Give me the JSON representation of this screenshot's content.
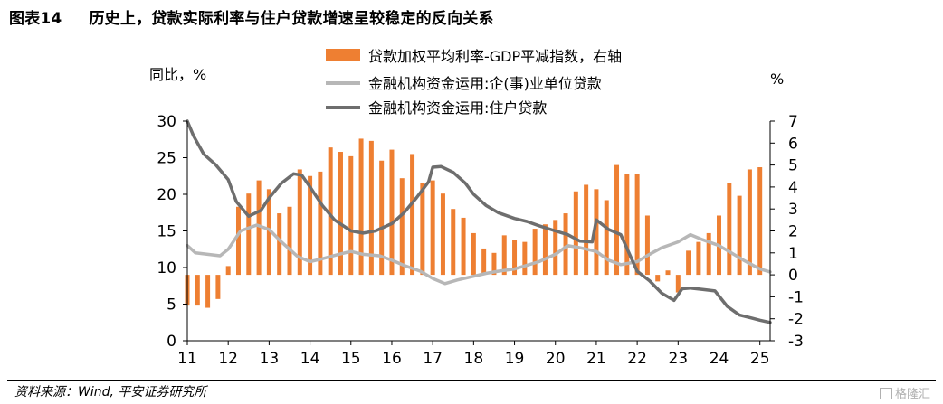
{
  "figure": {
    "tag": "图表14",
    "title": "历史上，贷款实际利率与住户贷款增速呈较稳定的反向关系",
    "source": "资料来源：Wind, 平安证券研究所",
    "watermark": "格隆汇"
  },
  "chart_data": {
    "type": "bar+line",
    "y_left_label": "同比，%",
    "y_right_label": "%",
    "y_left_range": [
      0,
      30
    ],
    "y_left_ticks": [
      "0",
      "5",
      "10",
      "15",
      "20",
      "25",
      "30"
    ],
    "y_right_range": [
      -3,
      7
    ],
    "y_right_ticks": [
      "-3",
      "-2",
      "-1",
      "0",
      "1",
      "2",
      "3",
      "4",
      "5",
      "6",
      "7"
    ],
    "x_range": [
      2011.0,
      2025.25
    ],
    "x_ticks": [
      "11",
      "12",
      "13",
      "14",
      "15",
      "16",
      "17",
      "18",
      "19",
      "20",
      "21",
      "22",
      "23",
      "24",
      "25"
    ],
    "legend_position": "top",
    "grid": false,
    "colors": {
      "bar": "#ee7f32",
      "line_enterprise": "#b7b7b7",
      "line_household": "#6e6e6e"
    },
    "legend": [
      {
        "key": "bar",
        "label": "贷款加权平均利率-GDP平减指数，右轴"
      },
      {
        "key": "enterprise",
        "label": "金融机构资金运用:企(事)业单位贷款"
      },
      {
        "key": "household",
        "label": "金融机构资金运用:住户贷款"
      }
    ],
    "bars_axis": "right",
    "bars": [
      {
        "x": "2011Q1",
        "value": -1.4
      },
      {
        "x": "2011Q2",
        "value": -1.4
      },
      {
        "x": "2011Q3",
        "value": -1.5
      },
      {
        "x": "2011Q4",
        "value": -1.1
      },
      {
        "x": "2012Q1",
        "value": 0.4
      },
      {
        "x": "2012Q2",
        "value": 3.1
      },
      {
        "x": "2012Q3",
        "value": 3.7
      },
      {
        "x": "2012Q4",
        "value": 4.3
      },
      {
        "x": "2013Q1",
        "value": 3.9
      },
      {
        "x": "2013Q2",
        "value": 2.8
      },
      {
        "x": "2013Q3",
        "value": 3.1
      },
      {
        "x": "2013Q4",
        "value": 4.8
      },
      {
        "x": "2014Q1",
        "value": 4.5
      },
      {
        "x": "2014Q2",
        "value": 4.7
      },
      {
        "x": "2014Q3",
        "value": 5.8
      },
      {
        "x": "2014Q4",
        "value": 5.6
      },
      {
        "x": "2015Q1",
        "value": 5.4
      },
      {
        "x": "2015Q2",
        "value": 6.2
      },
      {
        "x": "2015Q3",
        "value": 6.1
      },
      {
        "x": "2015Q4",
        "value": 5.2
      },
      {
        "x": "2016Q1",
        "value": 5.7
      },
      {
        "x": "2016Q2",
        "value": 4.4
      },
      {
        "x": "2016Q3",
        "value": 5.5
      },
      {
        "x": "2016Q4",
        "value": 4.2
      },
      {
        "x": "2017Q1",
        "value": 4.3
      },
      {
        "x": "2017Q2",
        "value": 3.7
      },
      {
        "x": "2017Q3",
        "value": 3.0
      },
      {
        "x": "2017Q4",
        "value": 2.6
      },
      {
        "x": "2018Q1",
        "value": 1.9
      },
      {
        "x": "2018Q2",
        "value": 1.2
      },
      {
        "x": "2018Q3",
        "value": 1.0
      },
      {
        "x": "2018Q4",
        "value": 1.8
      },
      {
        "x": "2019Q1",
        "value": 1.6
      },
      {
        "x": "2019Q2",
        "value": 1.5
      },
      {
        "x": "2019Q3",
        "value": 2.1
      },
      {
        "x": "2019Q4",
        "value": 2.3
      },
      {
        "x": "2020Q1",
        "value": 2.5
      },
      {
        "x": "2020Q2",
        "value": 2.8
      },
      {
        "x": "2020Q3",
        "value": 3.8
      },
      {
        "x": "2020Q4",
        "value": 4.1
      },
      {
        "x": "2021Q1",
        "value": 3.9
      },
      {
        "x": "2021Q2",
        "value": 3.4
      },
      {
        "x": "2021Q3",
        "value": 5.0
      },
      {
        "x": "2021Q4",
        "value": 4.6
      },
      {
        "x": "2022Q1",
        "value": 4.6
      },
      {
        "x": "2022Q2",
        "value": 2.7
      },
      {
        "x": "2022Q3",
        "value": -0.3
      },
      {
        "x": "2022Q4",
        "value": 0.2
      },
      {
        "x": "2023Q1",
        "value": -0.8
      },
      {
        "x": "2023Q2",
        "value": 1.1
      },
      {
        "x": "2023Q3",
        "value": 1.5
      },
      {
        "x": "2023Q4",
        "value": 1.9
      },
      {
        "x": "2024Q1",
        "value": 2.7
      },
      {
        "x": "2024Q2",
        "value": 4.2
      },
      {
        "x": "2024Q3",
        "value": 3.6
      },
      {
        "x": "2024Q4",
        "value": 4.8
      },
      {
        "x": "2025Q1",
        "value": 4.9
      }
    ],
    "series": [
      {
        "name": "金融机构资金运用:企(事)业单位贷款",
        "axis": "left",
        "points": [
          [
            2011.0,
            13.0
          ],
          [
            2011.2,
            12.0
          ],
          [
            2011.5,
            11.8
          ],
          [
            2011.8,
            11.6
          ],
          [
            2012.0,
            12.5
          ],
          [
            2012.3,
            15.0
          ],
          [
            2012.7,
            15.8
          ],
          [
            2013.0,
            15.2
          ],
          [
            2013.3,
            13.5
          ],
          [
            2013.7,
            11.5
          ],
          [
            2014.0,
            10.8
          ],
          [
            2014.3,
            11.2
          ],
          [
            2014.7,
            11.8
          ],
          [
            2015.0,
            12.2
          ],
          [
            2015.3,
            11.8
          ],
          [
            2015.7,
            11.6
          ],
          [
            2016.0,
            11.0
          ],
          [
            2016.3,
            10.3
          ],
          [
            2016.7,
            9.5
          ],
          [
            2017.0,
            8.5
          ],
          [
            2017.3,
            7.8
          ],
          [
            2017.6,
            8.3
          ],
          [
            2018.0,
            8.8
          ],
          [
            2018.3,
            9.2
          ],
          [
            2018.6,
            9.5
          ],
          [
            2019.0,
            9.8
          ],
          [
            2019.3,
            10.3
          ],
          [
            2019.6,
            10.8
          ],
          [
            2020.0,
            11.8
          ],
          [
            2020.3,
            13.0
          ],
          [
            2020.6,
            12.7
          ],
          [
            2021.0,
            12.2
          ],
          [
            2021.3,
            11.0
          ],
          [
            2021.6,
            10.4
          ],
          [
            2022.0,
            10.8
          ],
          [
            2022.3,
            11.8
          ],
          [
            2022.6,
            12.7
          ],
          [
            2023.0,
            13.5
          ],
          [
            2023.3,
            14.5
          ],
          [
            2023.6,
            13.8
          ],
          [
            2024.0,
            13.0
          ],
          [
            2024.3,
            12.0
          ],
          [
            2024.6,
            11.0
          ],
          [
            2025.0,
            9.8
          ],
          [
            2025.25,
            9.4
          ]
        ]
      },
      {
        "name": "金融机构资金运用:住户贷款",
        "axis": "left",
        "points": [
          [
            2011.0,
            30.0
          ],
          [
            2011.15,
            28.0
          ],
          [
            2011.4,
            25.5
          ],
          [
            2011.7,
            24.0
          ],
          [
            2012.0,
            22.0
          ],
          [
            2012.2,
            19.0
          ],
          [
            2012.5,
            17.0
          ],
          [
            2012.8,
            17.8
          ],
          [
            2013.0,
            19.5
          ],
          [
            2013.3,
            21.5
          ],
          [
            2013.6,
            22.8
          ],
          [
            2013.8,
            22.6
          ],
          [
            2014.0,
            21.0
          ],
          [
            2014.3,
            18.5
          ],
          [
            2014.6,
            16.5
          ],
          [
            2015.0,
            15.0
          ],
          [
            2015.3,
            14.7
          ],
          [
            2015.6,
            15.0
          ],
          [
            2016.0,
            16.0
          ],
          [
            2016.3,
            17.5
          ],
          [
            2016.6,
            19.5
          ],
          [
            2016.9,
            21.7
          ],
          [
            2017.0,
            23.7
          ],
          [
            2017.2,
            23.8
          ],
          [
            2017.5,
            23.0
          ],
          [
            2017.8,
            21.5
          ],
          [
            2018.0,
            20.0
          ],
          [
            2018.3,
            18.5
          ],
          [
            2018.6,
            17.5
          ],
          [
            2019.0,
            16.7
          ],
          [
            2019.3,
            16.3
          ],
          [
            2019.6,
            15.7
          ],
          [
            2020.0,
            15.0
          ],
          [
            2020.3,
            14.5
          ],
          [
            2020.6,
            13.6
          ],
          [
            2020.9,
            13.5
          ],
          [
            2021.0,
            16.5
          ],
          [
            2021.3,
            15.2
          ],
          [
            2021.6,
            14.5
          ],
          [
            2022.0,
            9.5
          ],
          [
            2022.3,
            8.2
          ],
          [
            2022.6,
            6.5
          ],
          [
            2022.9,
            5.5
          ],
          [
            2023.1,
            7.1
          ],
          [
            2023.3,
            7.2
          ],
          [
            2023.6,
            7.0
          ],
          [
            2023.9,
            6.8
          ],
          [
            2024.2,
            4.7
          ],
          [
            2024.5,
            3.5
          ],
          [
            2024.8,
            3.1
          ],
          [
            2025.0,
            2.8
          ],
          [
            2025.25,
            2.5
          ]
        ]
      }
    ]
  }
}
